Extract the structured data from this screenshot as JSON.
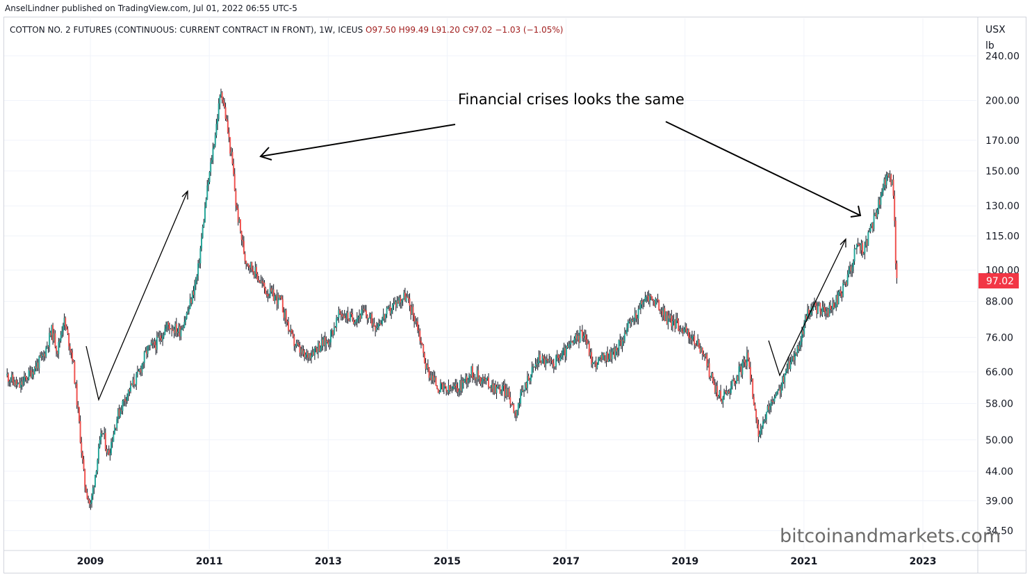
{
  "attribution": "AnselLindner published on TradingView.com, Jul 01, 2022 06:55 UTC-5",
  "legend": {
    "symbol": "COTTON NO. 2 FUTURES (CONTINUOUS: CURRENT CONTRACT IN FRONT), 1W, ICEUS",
    "open": "O97.50",
    "high": "H99.49",
    "low": "L91.20",
    "close": "C97.02",
    "change": "−1.03 (−1.05%)"
  },
  "colors": {
    "up": "#26a69a",
    "down": "#ef5350",
    "candle_dark": "#131722",
    "last_price_bg": "#f23645",
    "grid": "#f0f3fa"
  },
  "chart_data": {
    "type": "candlestick",
    "interval": "1W",
    "scale": "log",
    "currency": "USX",
    "unit": "lb",
    "y_ticks": [
      "240.00",
      "200.00",
      "170.00",
      "150.00",
      "130.00",
      "115.00",
      "100.00",
      "88.00",
      "76.00",
      "66.00",
      "58.00",
      "50.00",
      "44.00",
      "39.00",
      "34.50"
    ],
    "y_range": [
      32,
      280
    ],
    "x_ticks": [
      "2009",
      "2011",
      "2013",
      "2015",
      "2017",
      "2019",
      "2021",
      "2023"
    ],
    "x_range": [
      2007.55,
      2023.9
    ],
    "last_price": "97.02",
    "approx_close_path": [
      [
        2007.6,
        65
      ],
      [
        2007.8,
        62
      ],
      [
        2008.0,
        66
      ],
      [
        2008.2,
        70
      ],
      [
        2008.35,
        78
      ],
      [
        2008.45,
        72
      ],
      [
        2008.55,
        82
      ],
      [
        2008.7,
        70
      ],
      [
        2008.8,
        55
      ],
      [
        2008.9,
        42
      ],
      [
        2009.0,
        38
      ],
      [
        2009.1,
        45
      ],
      [
        2009.2,
        52
      ],
      [
        2009.3,
        47
      ],
      [
        2009.45,
        55
      ],
      [
        2009.6,
        60
      ],
      [
        2009.8,
        65
      ],
      [
        2009.95,
        72
      ],
      [
        2010.1,
        74
      ],
      [
        2010.3,
        80
      ],
      [
        2010.5,
        78
      ],
      [
        2010.65,
        85
      ],
      [
        2010.8,
        98
      ],
      [
        2010.95,
        135
      ],
      [
        2011.1,
        175
      ],
      [
        2011.2,
        210
      ],
      [
        2011.3,
        180
      ],
      [
        2011.4,
        150
      ],
      [
        2011.45,
        130
      ],
      [
        2011.6,
        105
      ],
      [
        2011.75,
        100
      ],
      [
        2011.95,
        92
      ],
      [
        2012.2,
        88
      ],
      [
        2012.4,
        75
      ],
      [
        2012.6,
        70
      ],
      [
        2012.8,
        73
      ],
      [
        2013.0,
        75
      ],
      [
        2013.2,
        84
      ],
      [
        2013.4,
        82
      ],
      [
        2013.6,
        84
      ],
      [
        2013.8,
        80
      ],
      [
        2014.0,
        84
      ],
      [
        2014.15,
        88
      ],
      [
        2014.3,
        90
      ],
      [
        2014.5,
        80
      ],
      [
        2014.65,
        67
      ],
      [
        2014.85,
        62
      ],
      [
        2015.0,
        61
      ],
      [
        2015.2,
        62
      ],
      [
        2015.4,
        66
      ],
      [
        2015.6,
        64
      ],
      [
        2015.8,
        62
      ],
      [
        2016.0,
        61
      ],
      [
        2016.15,
        56
      ],
      [
        2016.35,
        64
      ],
      [
        2016.55,
        70
      ],
      [
        2016.75,
        68
      ],
      [
        2016.95,
        71
      ],
      [
        2017.1,
        74
      ],
      [
        2017.3,
        78
      ],
      [
        2017.45,
        68
      ],
      [
        2017.65,
        70
      ],
      [
        2017.85,
        72
      ],
      [
        2018.0,
        78
      ],
      [
        2018.2,
        84
      ],
      [
        2018.35,
        90
      ],
      [
        2018.5,
        88
      ],
      [
        2018.7,
        82
      ],
      [
        2018.9,
        80
      ],
      [
        2019.1,
        76
      ],
      [
        2019.3,
        72
      ],
      [
        2019.45,
        64
      ],
      [
        2019.6,
        59
      ],
      [
        2019.8,
        63
      ],
      [
        2019.95,
        67
      ],
      [
        2020.05,
        70
      ],
      [
        2020.15,
        60
      ],
      [
        2020.25,
        50
      ],
      [
        2020.4,
        57
      ],
      [
        2020.55,
        60
      ],
      [
        2020.75,
        68
      ],
      [
        2020.95,
        75
      ],
      [
        2021.05,
        84
      ],
      [
        2021.2,
        86
      ],
      [
        2021.4,
        84
      ],
      [
        2021.6,
        90
      ],
      [
        2021.75,
        98
      ],
      [
        2021.9,
        112
      ],
      [
        2022.0,
        108
      ],
      [
        2022.15,
        120
      ],
      [
        2022.3,
        135
      ],
      [
        2022.4,
        150
      ],
      [
        2022.5,
        140
      ],
      [
        2022.55,
        100
      ],
      [
        2022.58,
        97
      ]
    ],
    "annotations": [
      {
        "text": "Financial crises looks the same"
      }
    ]
  },
  "watermark": "bitcoinandmarkets.com"
}
